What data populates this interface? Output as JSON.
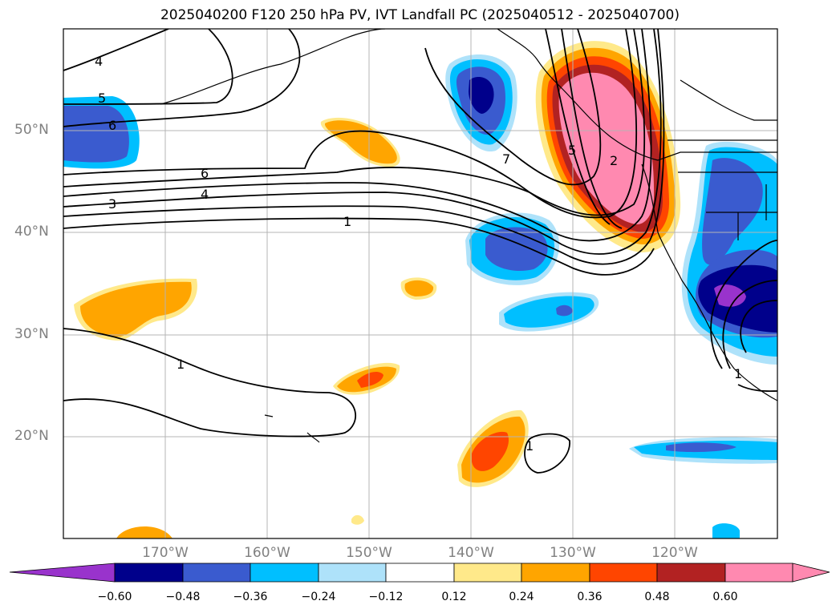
{
  "title": "2025040200 F120 250 hPa PV, IVT Landfall PC (2025040512 - 2025040700)",
  "lat_labels": [
    "50°N",
    "40°N",
    "30°N",
    "20°N"
  ],
  "lon_labels": [
    "170°W",
    "160°W",
    "150°W",
    "140°W",
    "130°W",
    "120°W"
  ],
  "colorbar": {
    "colors": [
      "#9933cc",
      "#00008b",
      "#3a5bcf",
      "#00bfff",
      "#aee2fa",
      "#ffffff",
      "#ffe98a",
      "#ffa500",
      "#ff4500",
      "#b22222",
      "#ff89b0"
    ],
    "tick_labels": [
      "−0.60",
      "−0.48",
      "−0.36",
      "−0.24",
      "−0.12",
      "0.12",
      "0.24",
      "0.36",
      "0.48",
      "0.60"
    ]
  },
  "contour_labels": [
    "4",
    "5",
    "6",
    "6",
    "4",
    "3",
    "1",
    "7",
    "5",
    "2",
    "1",
    "1",
    "1"
  ]
}
